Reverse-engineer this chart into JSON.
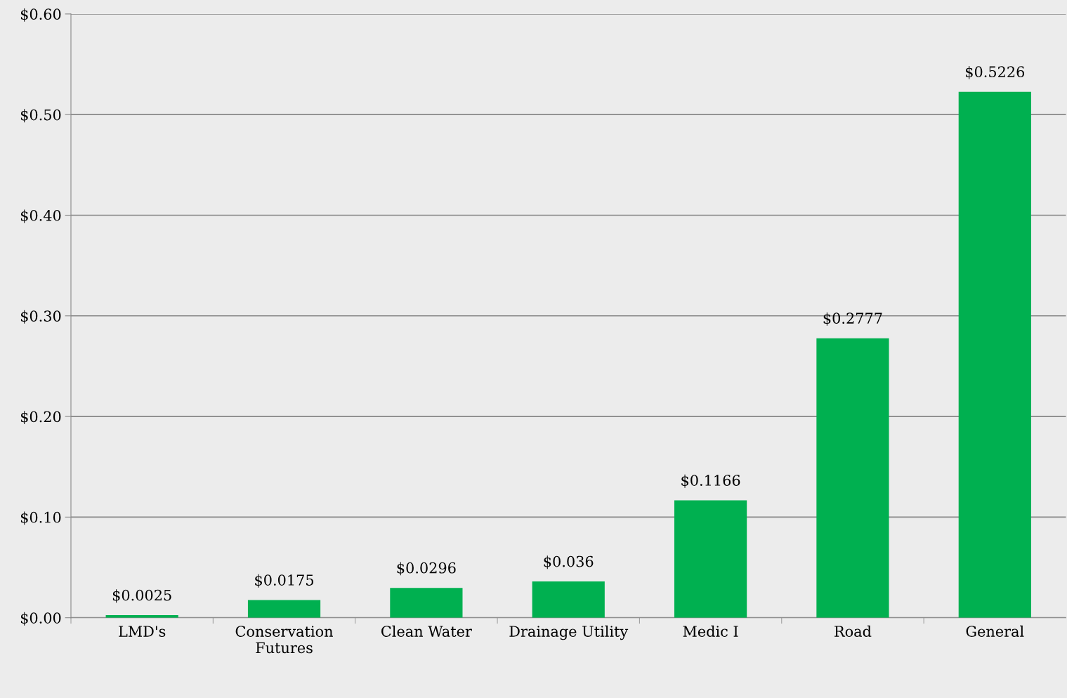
{
  "chart_data": {
    "type": "bar",
    "categories": [
      "LMD's",
      "Conservation\nFutures",
      "Clean Water",
      "Drainage Utility",
      "Medic I",
      "Road",
      "General"
    ],
    "values": [
      0.0025,
      0.0175,
      0.0296,
      0.036,
      0.1166,
      0.2777,
      0.5226
    ],
    "value_labels": [
      "$0.0025",
      "$0.0175",
      "$0.0296",
      "$0.036",
      "$0.1166",
      "$0.2777",
      "$0.5226"
    ],
    "color": "#00b050",
    "ylim": [
      0,
      0.6
    ],
    "yticks": [
      {
        "value": 0,
        "label": "$0.00"
      },
      {
        "value": 0.1,
        "label": "$0.10"
      },
      {
        "value": 0.2,
        "label": "$0.20"
      },
      {
        "value": 0.3,
        "label": "$0.30"
      },
      {
        "value": 0.4,
        "label": "$0.40"
      },
      {
        "value": 0.5,
        "label": "$0.50"
      },
      {
        "value": 0.6,
        "label": "$0.60"
      }
    ],
    "grid": "y",
    "legend": false
  }
}
